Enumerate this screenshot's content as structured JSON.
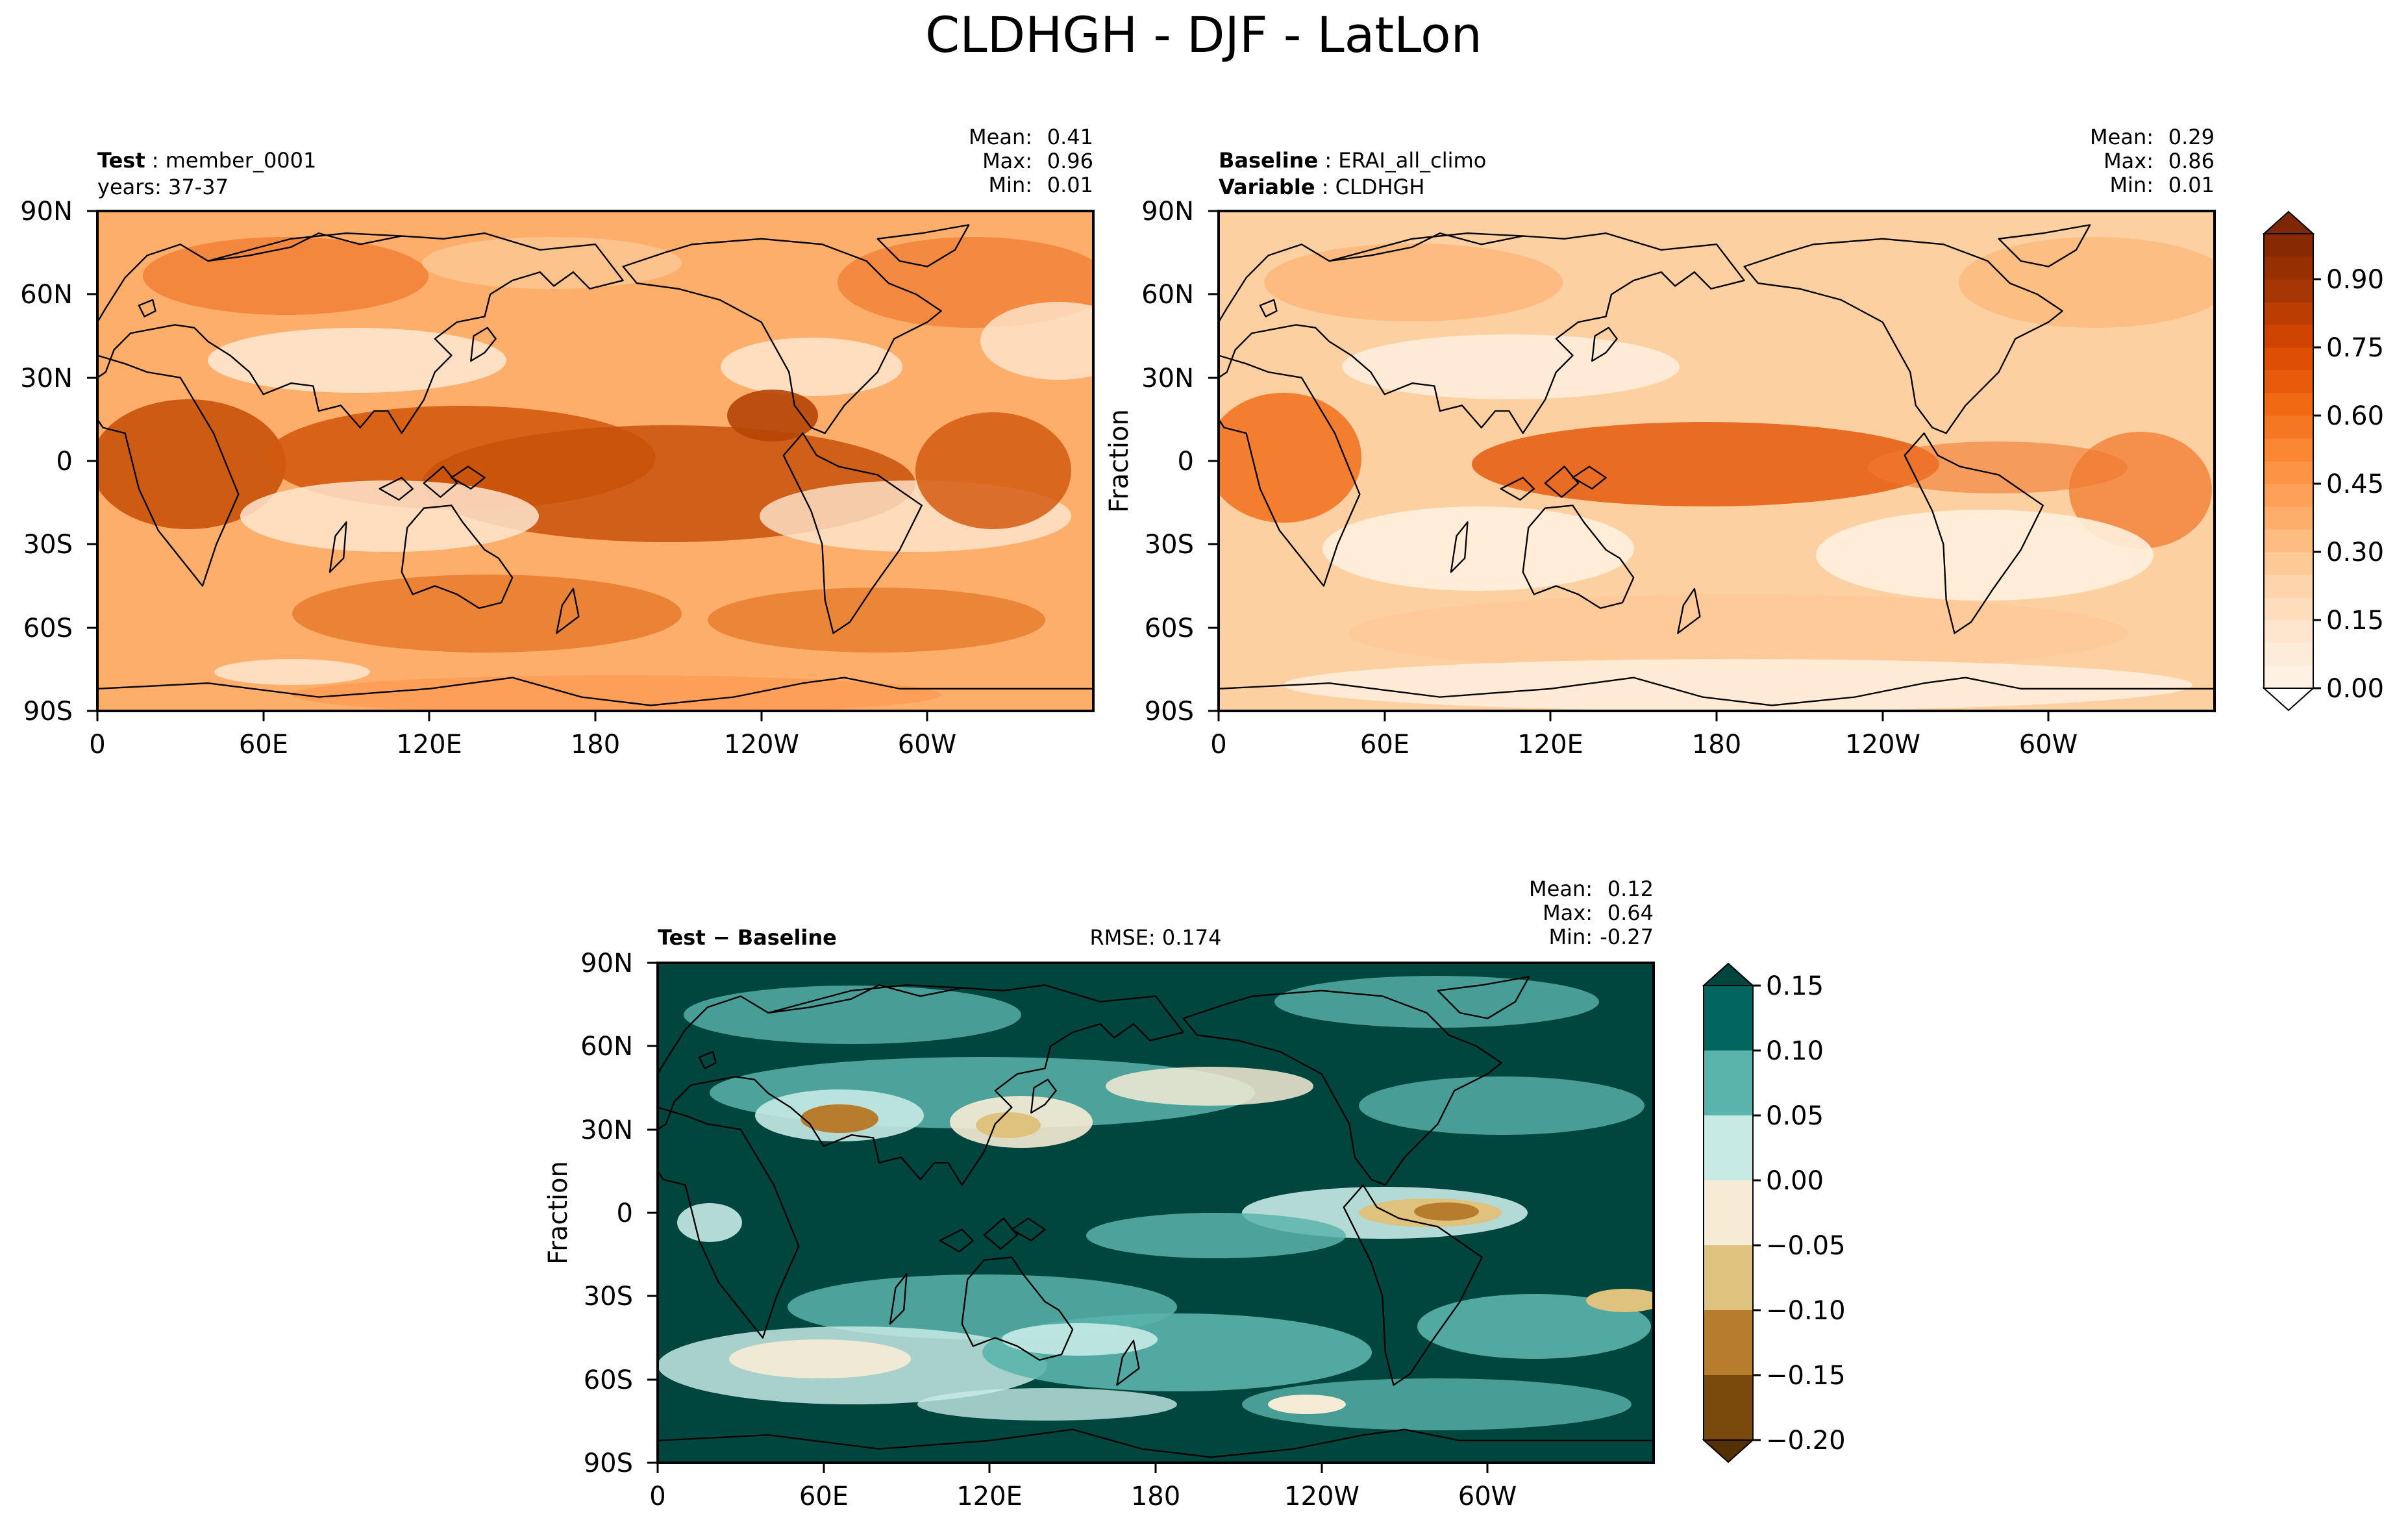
{
  "figure_title": "CLDHGH - DJF - LatLon",
  "chart_data": [
    {
      "type": "heatmap",
      "panel": "test",
      "label_bold": "Test",
      "label_value": "member_0001",
      "sublabel": "years: 37-37",
      "stats": {
        "mean_label": "Mean:",
        "mean": "0.41",
        "max_label": "Max:",
        "max": "0.96",
        "min_label": "Min:",
        "min": "0.01"
      },
      "ylabel": "",
      "x_ticks": [
        "0",
        "60E",
        "120E",
        "180",
        "120W",
        "60W"
      ],
      "y_ticks": [
        "90N",
        "60N",
        "30N",
        "0",
        "30S",
        "60S",
        "90S"
      ],
      "x_values": [
        0,
        60,
        120,
        180,
        240,
        300
      ],
      "y_values": [
        90,
        60,
        30,
        0,
        -30,
        -60,
        -90
      ],
      "xlim": [
        0,
        360
      ],
      "ylim": [
        -90,
        90
      ],
      "colormap": "Oranges",
      "vmin": 0.0,
      "vmax": 1.0
    },
    {
      "type": "heatmap",
      "panel": "baseline",
      "label_bold": "Baseline",
      "label_value": "ERAI_all_climo",
      "label2_bold": "Variable",
      "label2_value": "CLDHGH",
      "stats": {
        "mean_label": "Mean:",
        "mean": "0.29",
        "max_label": "Max:",
        "max": "0.86",
        "min_label": "Min:",
        "min": "0.01"
      },
      "ylabel": "Fraction",
      "x_ticks": [
        "0",
        "60E",
        "120E",
        "180",
        "120W",
        "60W"
      ],
      "y_ticks": [
        "90N",
        "60N",
        "30N",
        "0",
        "30S",
        "60S",
        "90S"
      ],
      "x_values": [
        0,
        60,
        120,
        180,
        240,
        300
      ],
      "y_values": [
        90,
        60,
        30,
        0,
        -30,
        -60,
        -90
      ],
      "xlim": [
        0,
        360
      ],
      "ylim": [
        -90,
        90
      ],
      "colormap": "Oranges",
      "vmin": 0.0,
      "vmax": 1.0,
      "colorbar_ticks": [
        "0.00",
        "0.15",
        "0.30",
        "0.45",
        "0.60",
        "0.75",
        "0.90"
      ],
      "colorbar_values": [
        0.0,
        0.15,
        0.3,
        0.45,
        0.6,
        0.75,
        0.9
      ]
    },
    {
      "type": "heatmap",
      "panel": "difference",
      "label_bold": "Test − Baseline",
      "rmse": "RMSE: 0.174",
      "stats": {
        "mean_label": "Mean:",
        "mean": "0.12",
        "max_label": "Max:",
        "max": "0.64",
        "min_label": "Min:",
        "min": "-0.27"
      },
      "ylabel": "Fraction",
      "x_ticks": [
        "0",
        "60E",
        "120E",
        "180",
        "120W",
        "60W"
      ],
      "y_ticks": [
        "90N",
        "60N",
        "30N",
        "0",
        "30S",
        "60S",
        "90S"
      ],
      "x_values": [
        0,
        60,
        120,
        180,
        240,
        300
      ],
      "y_values": [
        90,
        60,
        30,
        0,
        -30,
        -60,
        -90
      ],
      "xlim": [
        0,
        360
      ],
      "ylim": [
        -90,
        90
      ],
      "colormap": "BrBG",
      "vmin": -0.2,
      "vmax": 0.15,
      "colorbar_ticks": [
        "0.15",
        "0.10",
        "0.05",
        "0.00",
        "−0.05",
        "−0.10",
        "−0.15",
        "−0.20"
      ],
      "colorbar_values": [
        0.15,
        0.1,
        0.05,
        0.0,
        -0.05,
        -0.1,
        -0.15,
        -0.2
      ],
      "colorbar_bins": [
        "#01665e",
        "#5ab4ac",
        "#c7eae5",
        "#f6ecd6",
        "#dfc27d",
        "#b77d2d",
        "#7a4a0c"
      ]
    }
  ],
  "colors": {
    "oranges": [
      "#fff5eb",
      "#fee6ce",
      "#fdd0a2",
      "#fdae6b",
      "#fd8d3c",
      "#f16913",
      "#d94801",
      "#a63603",
      "#7f2704"
    ],
    "diff_dark": "#01463e",
    "coast": "#000000"
  }
}
